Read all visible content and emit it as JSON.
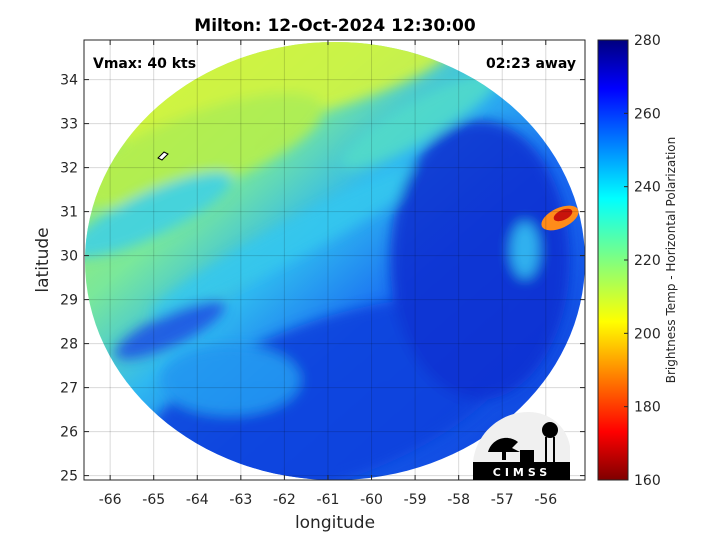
{
  "chart_data": {
    "type": "heatmap",
    "title": "Milton: 12-Oct-2024 12:30:00",
    "xlabel": "longitude",
    "ylabel": "latitude",
    "xlim": [
      -66.6,
      -55.1
    ],
    "ylim": [
      24.9,
      34.9
    ],
    "x_ticks": [
      -66,
      -65,
      -64,
      -63,
      -62,
      -61,
      -60,
      -59,
      -58,
      -57,
      -56
    ],
    "y_ticks": [
      25,
      26,
      27,
      28,
      29,
      30,
      31,
      32,
      33,
      34
    ],
    "grid": true,
    "annotations": {
      "vmax": "Vmax: 40 kts",
      "distance": "02:23 away"
    },
    "colorbar": {
      "label": "Brightness Temp - Horizontal Polarization",
      "range": [
        160,
        280
      ],
      "ticks": [
        160,
        180,
        200,
        220,
        240,
        260,
        280
      ],
      "colormap": "jet"
    },
    "swath": {
      "shape": "circle",
      "center_lon": -60.8,
      "center_lat": 29.7
    },
    "logo": "CIMSS"
  },
  "colors": {
    "cold": "#00007f",
    "warm": "#7f0000",
    "background": "#ffffff"
  }
}
